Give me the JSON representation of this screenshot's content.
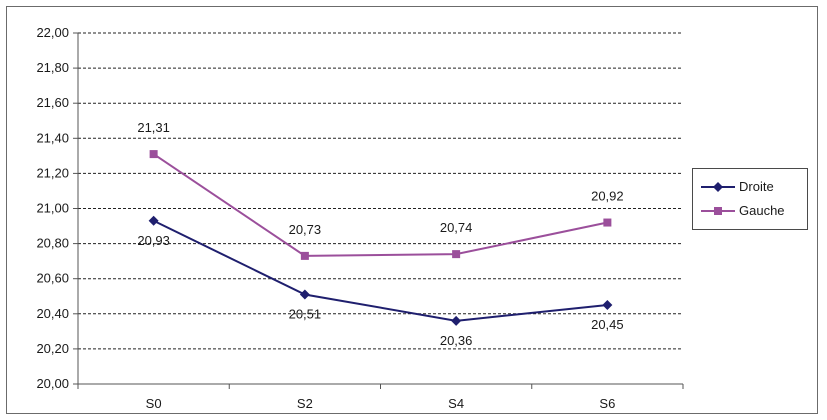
{
  "chart_data": {
    "type": "line",
    "categories": [
      "S0",
      "S2",
      "S4",
      "S6"
    ],
    "series": [
      {
        "name": "Droite",
        "values": [
          20.93,
          20.51,
          20.36,
          20.45
        ],
        "labels": [
          "20,93",
          "20,51",
          "20,36",
          "20,45"
        ],
        "color": "#1f1f6e",
        "marker": "diamond"
      },
      {
        "name": "Gauche",
        "values": [
          21.31,
          20.73,
          20.74,
          20.92
        ],
        "labels": [
          "21,31",
          "20,73",
          "20,74",
          "20,92"
        ],
        "color": "#9b4f9b",
        "marker": "square"
      }
    ],
    "ylim": [
      20.0,
      22.0
    ],
    "yticks": [
      20.0,
      20.2,
      20.4,
      20.6,
      20.8,
      21.0,
      21.2,
      21.4,
      21.6,
      21.8,
      22.0
    ],
    "ytick_labels": [
      "20,00",
      "20,20",
      "20,40",
      "20,60",
      "20,80",
      "21,00",
      "21,20",
      "21,40",
      "21,60",
      "21,80",
      "22,00"
    ],
    "grid": true,
    "legend": "right",
    "title": "",
    "xlabel": "",
    "ylabel": ""
  }
}
